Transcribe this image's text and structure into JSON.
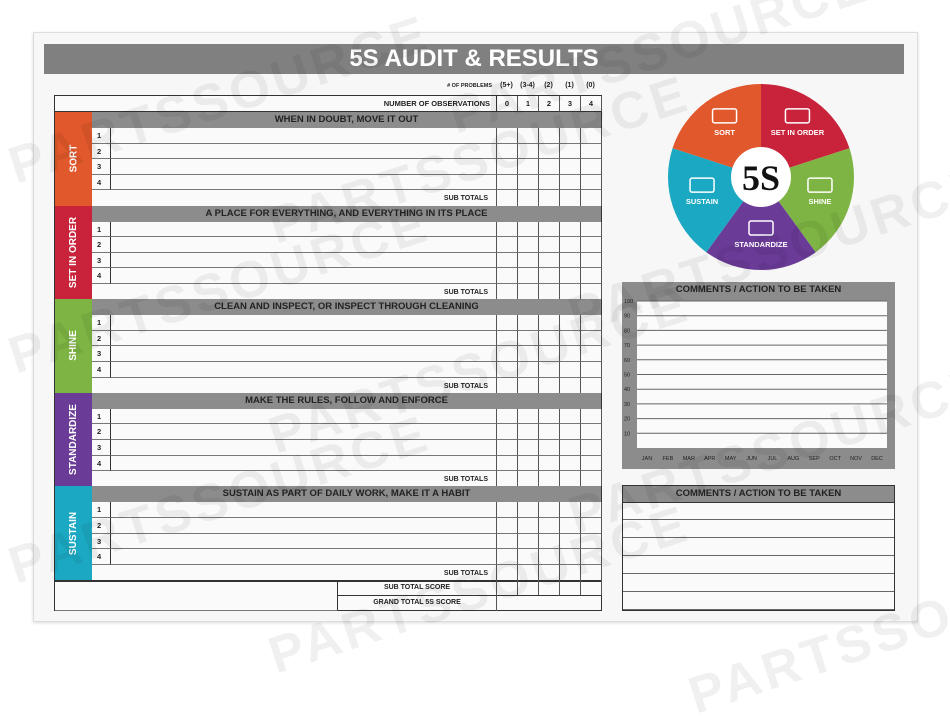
{
  "title": "5S AUDIT & RESULTS",
  "header": {
    "problems_label": "# OF PROBLEMS",
    "problems": [
      "(5+)",
      "(3-4)",
      "(2)",
      "(1)",
      "(0)"
    ],
    "observations_label": "NUMBER OF OBSERVATIONS",
    "observations": [
      "0",
      "1",
      "2",
      "3",
      "4"
    ]
  },
  "sections": [
    {
      "name": "SORT",
      "heading": "WHEN IN DOUBT, MOVE IT OUT",
      "color": "#e0582b",
      "rows": [
        "1",
        "2",
        "3",
        "4"
      ],
      "subtotal": "SUB TOTALS"
    },
    {
      "name": "SET IN ORDER",
      "heading": "A PLACE FOR EVERYTHING, AND EVERYTHING IN ITS PLACE",
      "color": "#c9233b",
      "rows": [
        "1",
        "2",
        "3",
        "4"
      ],
      "subtotal": "SUB TOTALS"
    },
    {
      "name": "SHINE",
      "heading": "CLEAN AND INSPECT, OR INSPECT THROUGH CLEANING",
      "color": "#7db443",
      "rows": [
        "1",
        "2",
        "3",
        "4"
      ],
      "subtotal": "SUB TOTALS"
    },
    {
      "name": "STANDARDIZE",
      "heading": "MAKE THE RULES, FOLLOW AND ENFORCE",
      "color": "#6b3b98",
      "rows": [
        "1",
        "2",
        "3",
        "4"
      ],
      "subtotal": "SUB TOTALS"
    },
    {
      "name": "SUSTAIN",
      "heading": "SUSTAIN AS PART OF DAILY WORK, MAKE IT A HABIT",
      "color": "#1ba8c2",
      "rows": [
        "1",
        "2",
        "3",
        "4"
      ],
      "subtotal": "SUB TOTALS"
    }
  ],
  "footer": {
    "sub_total_score": "SUB TOTAL SCORE",
    "grand_total": "GRAND TOTAL 5S SCORE"
  },
  "wheel": {
    "center": "5S",
    "segments": [
      {
        "label": "SORT",
        "color": "#e0582b",
        "icon": "sort-arrow-icon"
      },
      {
        "label": "SET IN ORDER",
        "color": "#c9233b",
        "icon": "tool-board-icon"
      },
      {
        "label": "SHINE",
        "color": "#7db443",
        "icon": "broom-bucket-icon"
      },
      {
        "label": "STANDARDIZE",
        "color": "#6b3b98",
        "icon": "tool-board-icon"
      },
      {
        "label": "SUSTAIN",
        "color": "#1ba8c2",
        "icon": "cycle-arrows-icon"
      }
    ]
  },
  "chart_data": {
    "type": "line",
    "title": "COMMENTS / ACTION TO BE TAKEN",
    "x": [
      "JAN",
      "FEB",
      "MAR",
      "APR",
      "MAY",
      "JUN",
      "JUL",
      "AUG",
      "SEP",
      "OCT",
      "NOV",
      "DEC"
    ],
    "yticks": [
      "100",
      "90",
      "80",
      "70",
      "60",
      "50",
      "40",
      "30",
      "20",
      "10"
    ],
    "ylim": [
      0,
      100
    ],
    "grid": true,
    "series": []
  },
  "comments": {
    "title": "COMMENTS / ACTION TO BE TAKEN"
  },
  "watermark": "PARTSSOURCE"
}
